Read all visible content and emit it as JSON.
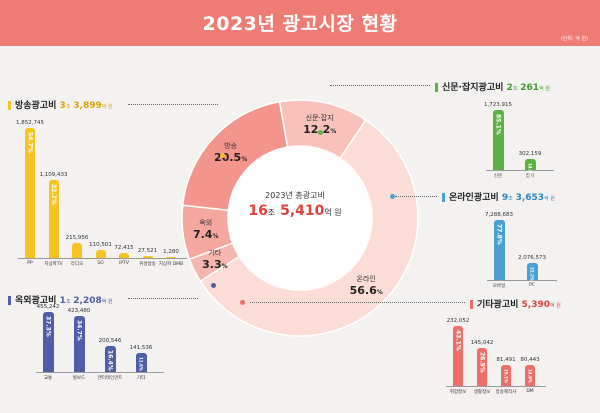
{
  "header": {
    "title": "2023년 광고시장 현황",
    "unit": "(단위: 억 원)"
  },
  "chart_data": [
    {
      "type": "pie",
      "title": "2023년 총광고비",
      "total": {
        "jo": "16",
        "jo_unit": "조",
        "eok": "5,410",
        "eok_unit": "억 원"
      },
      "categories": [
        "온라인",
        "방송",
        "신문·잡지",
        "옥외",
        "기타"
      ],
      "values": [
        56.6,
        20.5,
        12.2,
        7.4,
        3.3
      ],
      "labels": [
        "온라인",
        "방송",
        "신문·잡지",
        "옥외",
        "기타"
      ],
      "pct_labels": [
        "56.6",
        "20.5",
        "12.2",
        "7.4",
        "3.3"
      ],
      "colors": [
        "#fbdcd6",
        "#f3958d",
        "#f8c2bb",
        "#f4a69f",
        "#f6b5ae"
      ]
    },
    {
      "type": "bar",
      "title": "방송광고비",
      "total": {
        "jo": "3",
        "jo_unit": "조",
        "eok": "3,899",
        "eok_unit": "억 원"
      },
      "categories": [
        "PP",
        "지상파TV",
        "라디오",
        "SO",
        "IPTV",
        "위성방송",
        "지상파 DMB"
      ],
      "values": [
        1852745,
        1109433,
        215956,
        110501,
        72415,
        27521,
        1280
      ],
      "value_labels": [
        "1,852,745",
        "1,109,433",
        "215,956",
        "110,501",
        "72,415",
        "27,521",
        "1,280"
      ],
      "pct_labels": [
        "54.7%",
        "32.7%",
        "",
        "",
        "",
        "",
        ""
      ],
      "color": "#f7c321"
    },
    {
      "type": "bar",
      "title": "옥외광고비",
      "total": {
        "jo": "1",
        "jo_unit": "조",
        "eok": "2,208",
        "eok_unit": "억 원"
      },
      "categories": [
        "교통",
        "빌보드",
        "엔터테인먼트",
        "기타"
      ],
      "values": [
        455242,
        423480,
        200546,
        141536
      ],
      "value_labels": [
        "455,242",
        "423,480",
        "200,546",
        "141,536"
      ],
      "pct_labels": [
        "37.3%",
        "34.7%",
        "16.4%",
        "11.6%"
      ],
      "color": "#4f5ea8"
    },
    {
      "type": "bar",
      "title": "신문·잡지광고비",
      "total": {
        "jo": "2",
        "jo_unit": "조",
        "eok": "261",
        "eok_unit": "억 원"
      },
      "categories": [
        "신문",
        "잡지"
      ],
      "values": [
        1723915,
        302159
      ],
      "value_labels": [
        "1,723,915",
        "302,159"
      ],
      "pct_labels": [
        "85.1%",
        "14.9%"
      ],
      "color": "#5bb240"
    },
    {
      "type": "bar",
      "title": "온라인광고비",
      "total": {
        "jo": "9",
        "jo_unit": "조",
        "eok": "3,653",
        "eok_unit": "억 원"
      },
      "categories": [
        "모바일",
        "PC"
      ],
      "values": [
        7288683,
        2076573
      ],
      "value_labels": [
        "7,288,683",
        "2,076,573"
      ],
      "pct_labels": [
        "77.8%",
        "22.2%"
      ],
      "color": "#4a9fd4"
    },
    {
      "type": "bar",
      "title": "기타광고비",
      "total": {
        "jo": "",
        "jo_unit": "",
        "eok": "5,390",
        "eok_unit": "억 원"
      },
      "categories": [
        "취업정보",
        "생활정보",
        "방송제작사",
        "DM"
      ],
      "values": [
        232052,
        145042,
        81491,
        80443
      ],
      "value_labels": [
        "232,052",
        "145,042",
        "81,491",
        "80,443"
      ],
      "pct_labels": [
        "43.1%",
        "26.9%",
        "15.1%",
        "14.9%"
      ],
      "color": "#ee6f68"
    }
  ]
}
